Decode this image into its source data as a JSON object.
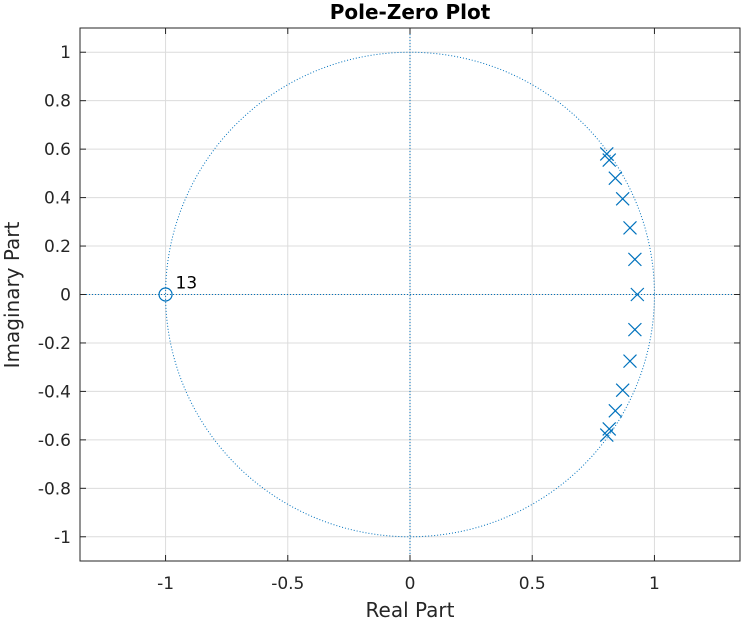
{
  "chart_data": {
    "type": "scatter",
    "title": "Pole-Zero Plot",
    "xlabel": "Real Part",
    "ylabel": "Imaginary Part",
    "xlim": [
      -1.35,
      1.35
    ],
    "ylim": [
      -1.1,
      1.1
    ],
    "xticks": [
      -1,
      -0.5,
      0,
      0.5,
      1
    ],
    "xtick_labels": [
      "-1",
      "-0.5",
      "0",
      "0.5",
      "1"
    ],
    "yticks": [
      1,
      0.8,
      0.6,
      0.4,
      0.2,
      0,
      -0.2,
      -0.4,
      -0.6,
      -0.8,
      -1
    ],
    "ytick_labels": [
      "1",
      "0.8",
      "0.6",
      "0.4",
      "0.2",
      "0",
      "-0.2",
      "-0.4",
      "-0.6",
      "-0.8",
      "-1"
    ],
    "grid": true,
    "unit_circle": true,
    "poles": [
      {
        "x": 0.93,
        "y": 0.0
      },
      {
        "x": 0.92,
        "y": 0.145
      },
      {
        "x": 0.92,
        "y": -0.145
      },
      {
        "x": 0.9,
        "y": 0.275
      },
      {
        "x": 0.9,
        "y": -0.275
      },
      {
        "x": 0.87,
        "y": 0.395
      },
      {
        "x": 0.87,
        "y": -0.395
      },
      {
        "x": 0.84,
        "y": 0.48
      },
      {
        "x": 0.84,
        "y": -0.48
      },
      {
        "x": 0.815,
        "y": 0.555
      },
      {
        "x": 0.815,
        "y": -0.555
      },
      {
        "x": 0.805,
        "y": 0.58
      },
      {
        "x": 0.805,
        "y": -0.58
      }
    ],
    "zeros": [
      {
        "x": -1.0,
        "y": 0.0,
        "multiplicity": "13"
      }
    ],
    "colors": {
      "marker": "#0072bd",
      "grid": "#dcdcdc",
      "axis": "#262626"
    }
  }
}
